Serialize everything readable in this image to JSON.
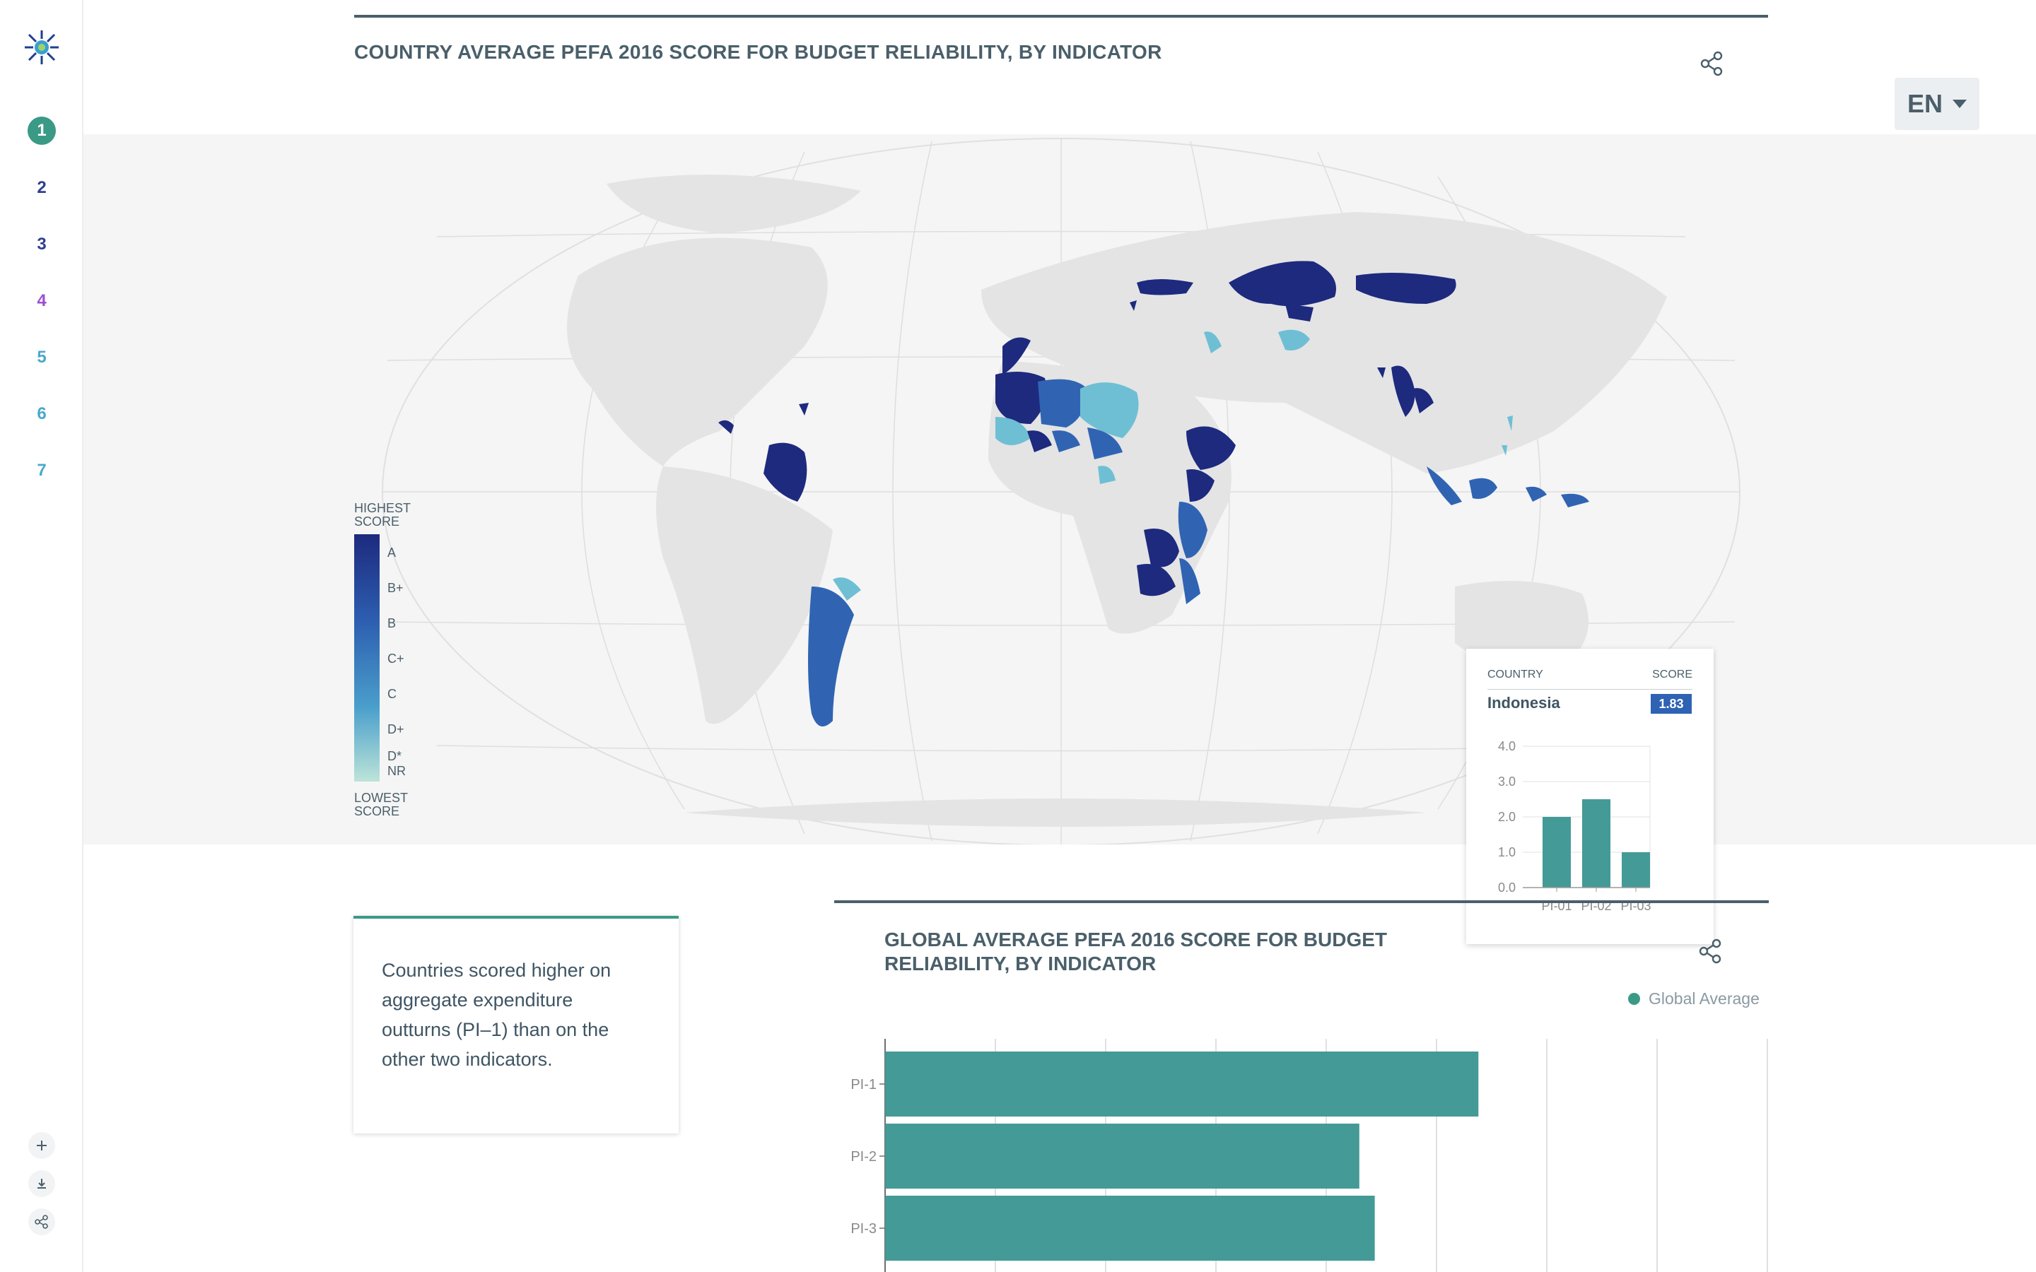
{
  "sidebar": {
    "nav_items": [
      "1",
      "2",
      "3",
      "4",
      "5",
      "6",
      "7"
    ],
    "nav_colors": [
      "#3a9a86",
      "#2e3f8f",
      "#2e3f8f",
      "#9b4fd0",
      "#4aa8cc",
      "#4aa8cc",
      "#4aa8cc"
    ],
    "tools": [
      "plus-icon",
      "download-icon",
      "share-icon"
    ]
  },
  "map": {
    "title": "COUNTRY AVERAGE PEFA 2016 SCORE FOR BUDGET RELIABILITY, BY INDICATOR",
    "legend": {
      "highest": [
        "HIGHEST",
        "SCORE"
      ],
      "lowest": [
        "LOWEST",
        "SCORE"
      ],
      "labels": [
        "A",
        "B+",
        "B",
        "C+",
        "C",
        "D+",
        "D*",
        "NR"
      ]
    }
  },
  "language": {
    "label": "EN"
  },
  "tooltip": {
    "country_header": "COUNTRY",
    "score_header": "SCORE",
    "country": "Indonesia",
    "score": "1.83",
    "chart": {
      "categories": [
        "PI-01",
        "PI-02",
        "PI-03"
      ],
      "values": [
        2.0,
        2.5,
        1.0
      ],
      "ylim": [
        0,
        4
      ],
      "yticks": [
        "0.0",
        "1.0",
        "2.0",
        "3.0",
        "4.0"
      ]
    }
  },
  "commentary": {
    "lines": [
      "Countries scored higher on",
      "aggregate expenditure",
      "outturns (PI–1) than on the",
      "other two indicators."
    ]
  },
  "global_chart": {
    "title_lines": [
      "GLOBAL AVERAGE PEFA 2016 SCORE FOR BUDGET",
      "RELIABILITY, BY INDICATOR"
    ],
    "legend_label": "Global Average"
  },
  "chart_data": [
    {
      "type": "bar",
      "title": "",
      "categories": [
        "PI-01",
        "PI-02",
        "PI-03"
      ],
      "series": [
        {
          "name": "Indonesia",
          "values": [
            2.0,
            2.5,
            1.0
          ]
        }
      ],
      "ylim": [
        0,
        4
      ],
      "grid": true
    },
    {
      "type": "bar",
      "orientation": "horizontal",
      "title": "GLOBAL AVERAGE PEFA 2016 SCORE FOR BUDGET RELIABILITY, BY INDICATOR",
      "categories": [
        "PI-1",
        "PI-2",
        "PI-3"
      ],
      "series": [
        {
          "name": "Global Average",
          "values": [
            2.69,
            2.15,
            2.22
          ]
        }
      ],
      "xlim": [
        0,
        4
      ],
      "grid": true,
      "legend": "top-right"
    }
  ],
  "colors": {
    "accent": "#3a9a86",
    "bar": "#449a96",
    "dark_text": "#4a5f6a"
  }
}
